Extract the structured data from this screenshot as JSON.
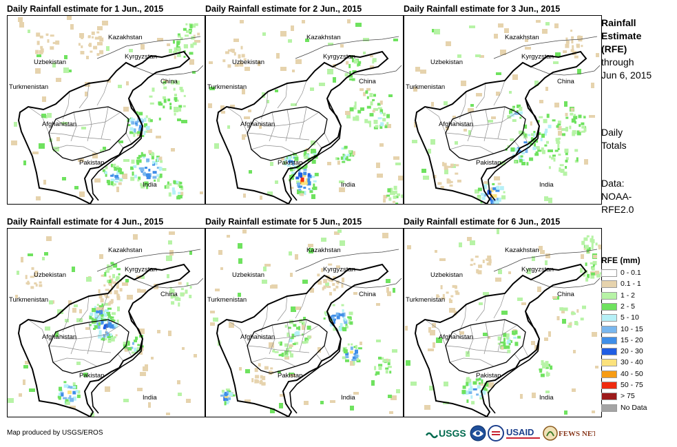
{
  "panels": [
    {
      "title": "Daily Rainfall estimate for 1 Jun., 2015",
      "day": 1
    },
    {
      "title": "Daily Rainfall estimate for 2 Jun., 2015",
      "day": 2
    },
    {
      "title": "Daily Rainfall estimate for 3 Jun., 2015",
      "day": 3
    },
    {
      "title": "Daily Rainfall estimate for 4 Jun., 2015",
      "day": 4
    },
    {
      "title": "Daily Rainfall estimate for 5 Jun., 2015",
      "day": 5
    },
    {
      "title": "Daily Rainfall estimate for 6 Jun., 2015",
      "day": 6
    }
  ],
  "place_labels": {
    "kazakhstan": "Kazakhstan",
    "uzbekistan": "Uzbekistan",
    "kyrgyzstan": "Kyrgyzstan",
    "china": "China",
    "turkmenistan": "Turkmenistan",
    "afghanistan": "Afghanistan",
    "pakistan": "Pakistan",
    "india": "India"
  },
  "sidebar": {
    "title_bold": [
      "Rainfall",
      "Estimate",
      "(RFE)"
    ],
    "title_rest": [
      "through",
      "Jun 6, 2015"
    ],
    "totals": [
      "Daily",
      "Totals"
    ],
    "data_source": [
      "Data:",
      "NOAA-",
      "RFE2.0"
    ]
  },
  "legend": {
    "title": "RFE (mm)",
    "items": [
      {
        "label": "0 - 0.1",
        "color": "#ffffff"
      },
      {
        "label": "0.1 - 1",
        "color": "#e6d3ad"
      },
      {
        "label": "1 - 2",
        "color": "#b7f3a6"
      },
      {
        "label": "2 - 5",
        "color": "#6fe25f"
      },
      {
        "label": "5 - 10",
        "color": "#b6f0f7"
      },
      {
        "label": "10 - 15",
        "color": "#79b7ee"
      },
      {
        "label": "15 - 20",
        "color": "#3f8ee8"
      },
      {
        "label": "20 - 30",
        "color": "#1f5de3"
      },
      {
        "label": "30 - 40",
        "color": "#fbe27c"
      },
      {
        "label": "40 - 50",
        "color": "#f79c14"
      },
      {
        "label": "50 - 75",
        "color": "#ef2b0f"
      },
      {
        "label": "> 75",
        "color": "#9c1a1a"
      },
      {
        "label": "No Data",
        "color": "#a4a4a4"
      }
    ]
  },
  "credit": "Map produced by USGS/EROS",
  "logos": {
    "usgs": "USGS",
    "usaid": "USAID",
    "fews": "FEWS NET"
  }
}
